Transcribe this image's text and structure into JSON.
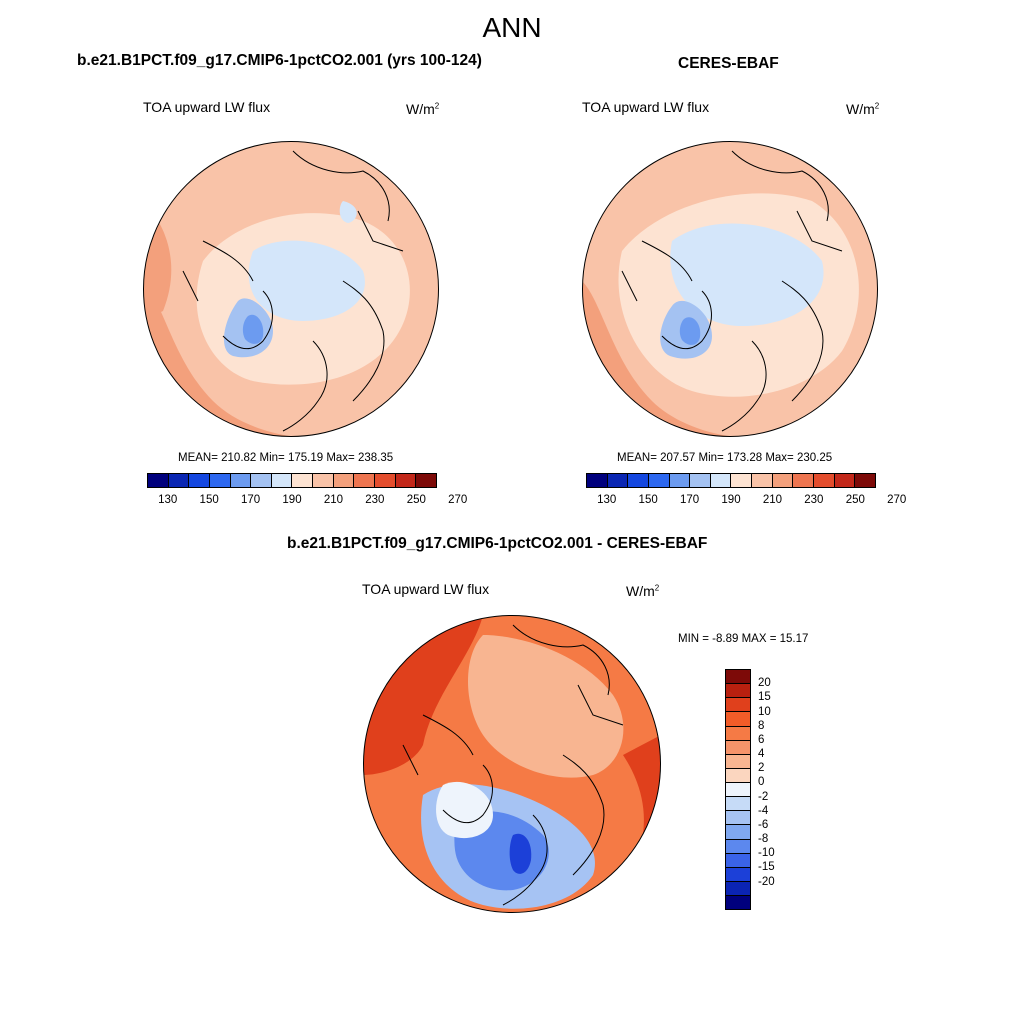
{
  "title": "ANN",
  "panels": [
    {
      "title": "b.e21.B1PCT.f09_g17.CMIP6-1pctCO2.001 (yrs 100-124)",
      "field": "TOA upward LW flux",
      "units_base": "W/m",
      "units_exp": "2",
      "stats": "MEAN= 210.82  Min= 175.19  Max= 238.35"
    },
    {
      "title": "CERES-EBAF",
      "field": "TOA upward LW flux",
      "units_base": "W/m",
      "units_exp": "2",
      "stats": "MEAN= 207.57  Min= 173.28  Max= 230.25"
    },
    {
      "title": "b.e21.B1PCT.f09_g17.CMIP6-1pctCO2.001 - CERES-EBAF",
      "field": "TOA upward LW flux",
      "units_base": "W/m",
      "units_exp": "2",
      "stats": "MIN =  -8.89 MAX =  15.17"
    }
  ],
  "abs_colorbar": {
    "colors": [
      "#00007d",
      "#0a26b3",
      "#1447e0",
      "#2d68f0",
      "#6c9bf0",
      "#a4c2f2",
      "#d4e6fa",
      "#fde3d2",
      "#f9c3a8",
      "#f3a07c",
      "#ee7550",
      "#e44d2d",
      "#c3281a",
      "#7d0a08"
    ],
    "tick_labels": [
      "130",
      "150",
      "170",
      "190",
      "210",
      "230",
      "250",
      "270"
    ]
  },
  "diff_colorbar": {
    "colors": [
      "#7d0a08",
      "#b8200f",
      "#e0401c",
      "#f25c28",
      "#f57a45",
      "#f5936a",
      "#f8b591",
      "#fbd6bf",
      "#eef4fc",
      "#c6dbf7",
      "#a6c3f3",
      "#80a8f0",
      "#5c88ee",
      "#3a63e8",
      "#1c40d8",
      "#0b24b4",
      "#00007d"
    ],
    "tick_labels": [
      "20",
      "15",
      "10",
      "8",
      "6",
      "4",
      "2",
      "0",
      "-2",
      "-4",
      "-6",
      "-8",
      "-10",
      "-15",
      "-20"
    ]
  }
}
